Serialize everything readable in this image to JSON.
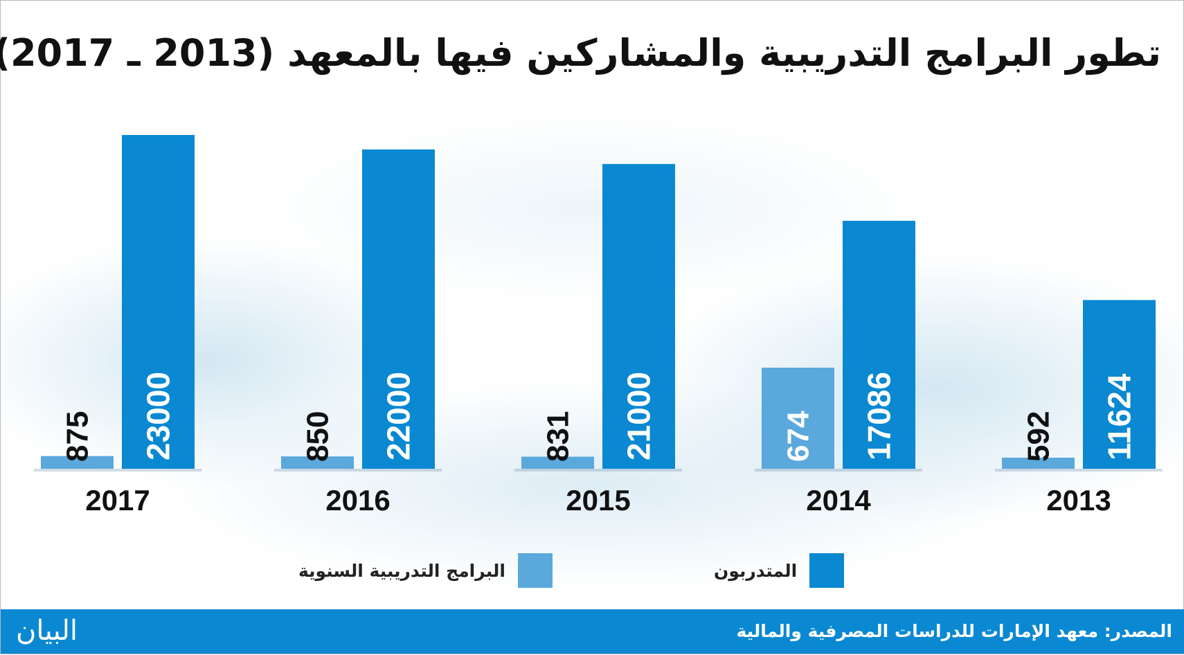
{
  "title": "تطور البرامج التدريبية والمشاركين فيها بالمعهد (2013 ـ 2017)",
  "chart_data": {
    "type": "bar",
    "categories": [
      "2017",
      "2016",
      "2015",
      "2014",
      "2013"
    ],
    "series": [
      {
        "name": "البرامج التدريبية السنوية",
        "color": "#5aa8dc",
        "values": [
          875,
          850,
          831,
          674,
          592
        ]
      },
      {
        "name": "المتدربون",
        "color": "#0a88d2",
        "values": [
          23000,
          22000,
          21000,
          17086,
          11624
        ]
      }
    ],
    "ylim": [
      0,
      25000
    ],
    "grid": false,
    "legend_position": "bottom",
    "value_labels": "inside-bar-vertical"
  },
  "footer": {
    "source": "المصدر: معهد الإمارات للدراسات المصرفية والمالية",
    "logo": "البيان"
  }
}
